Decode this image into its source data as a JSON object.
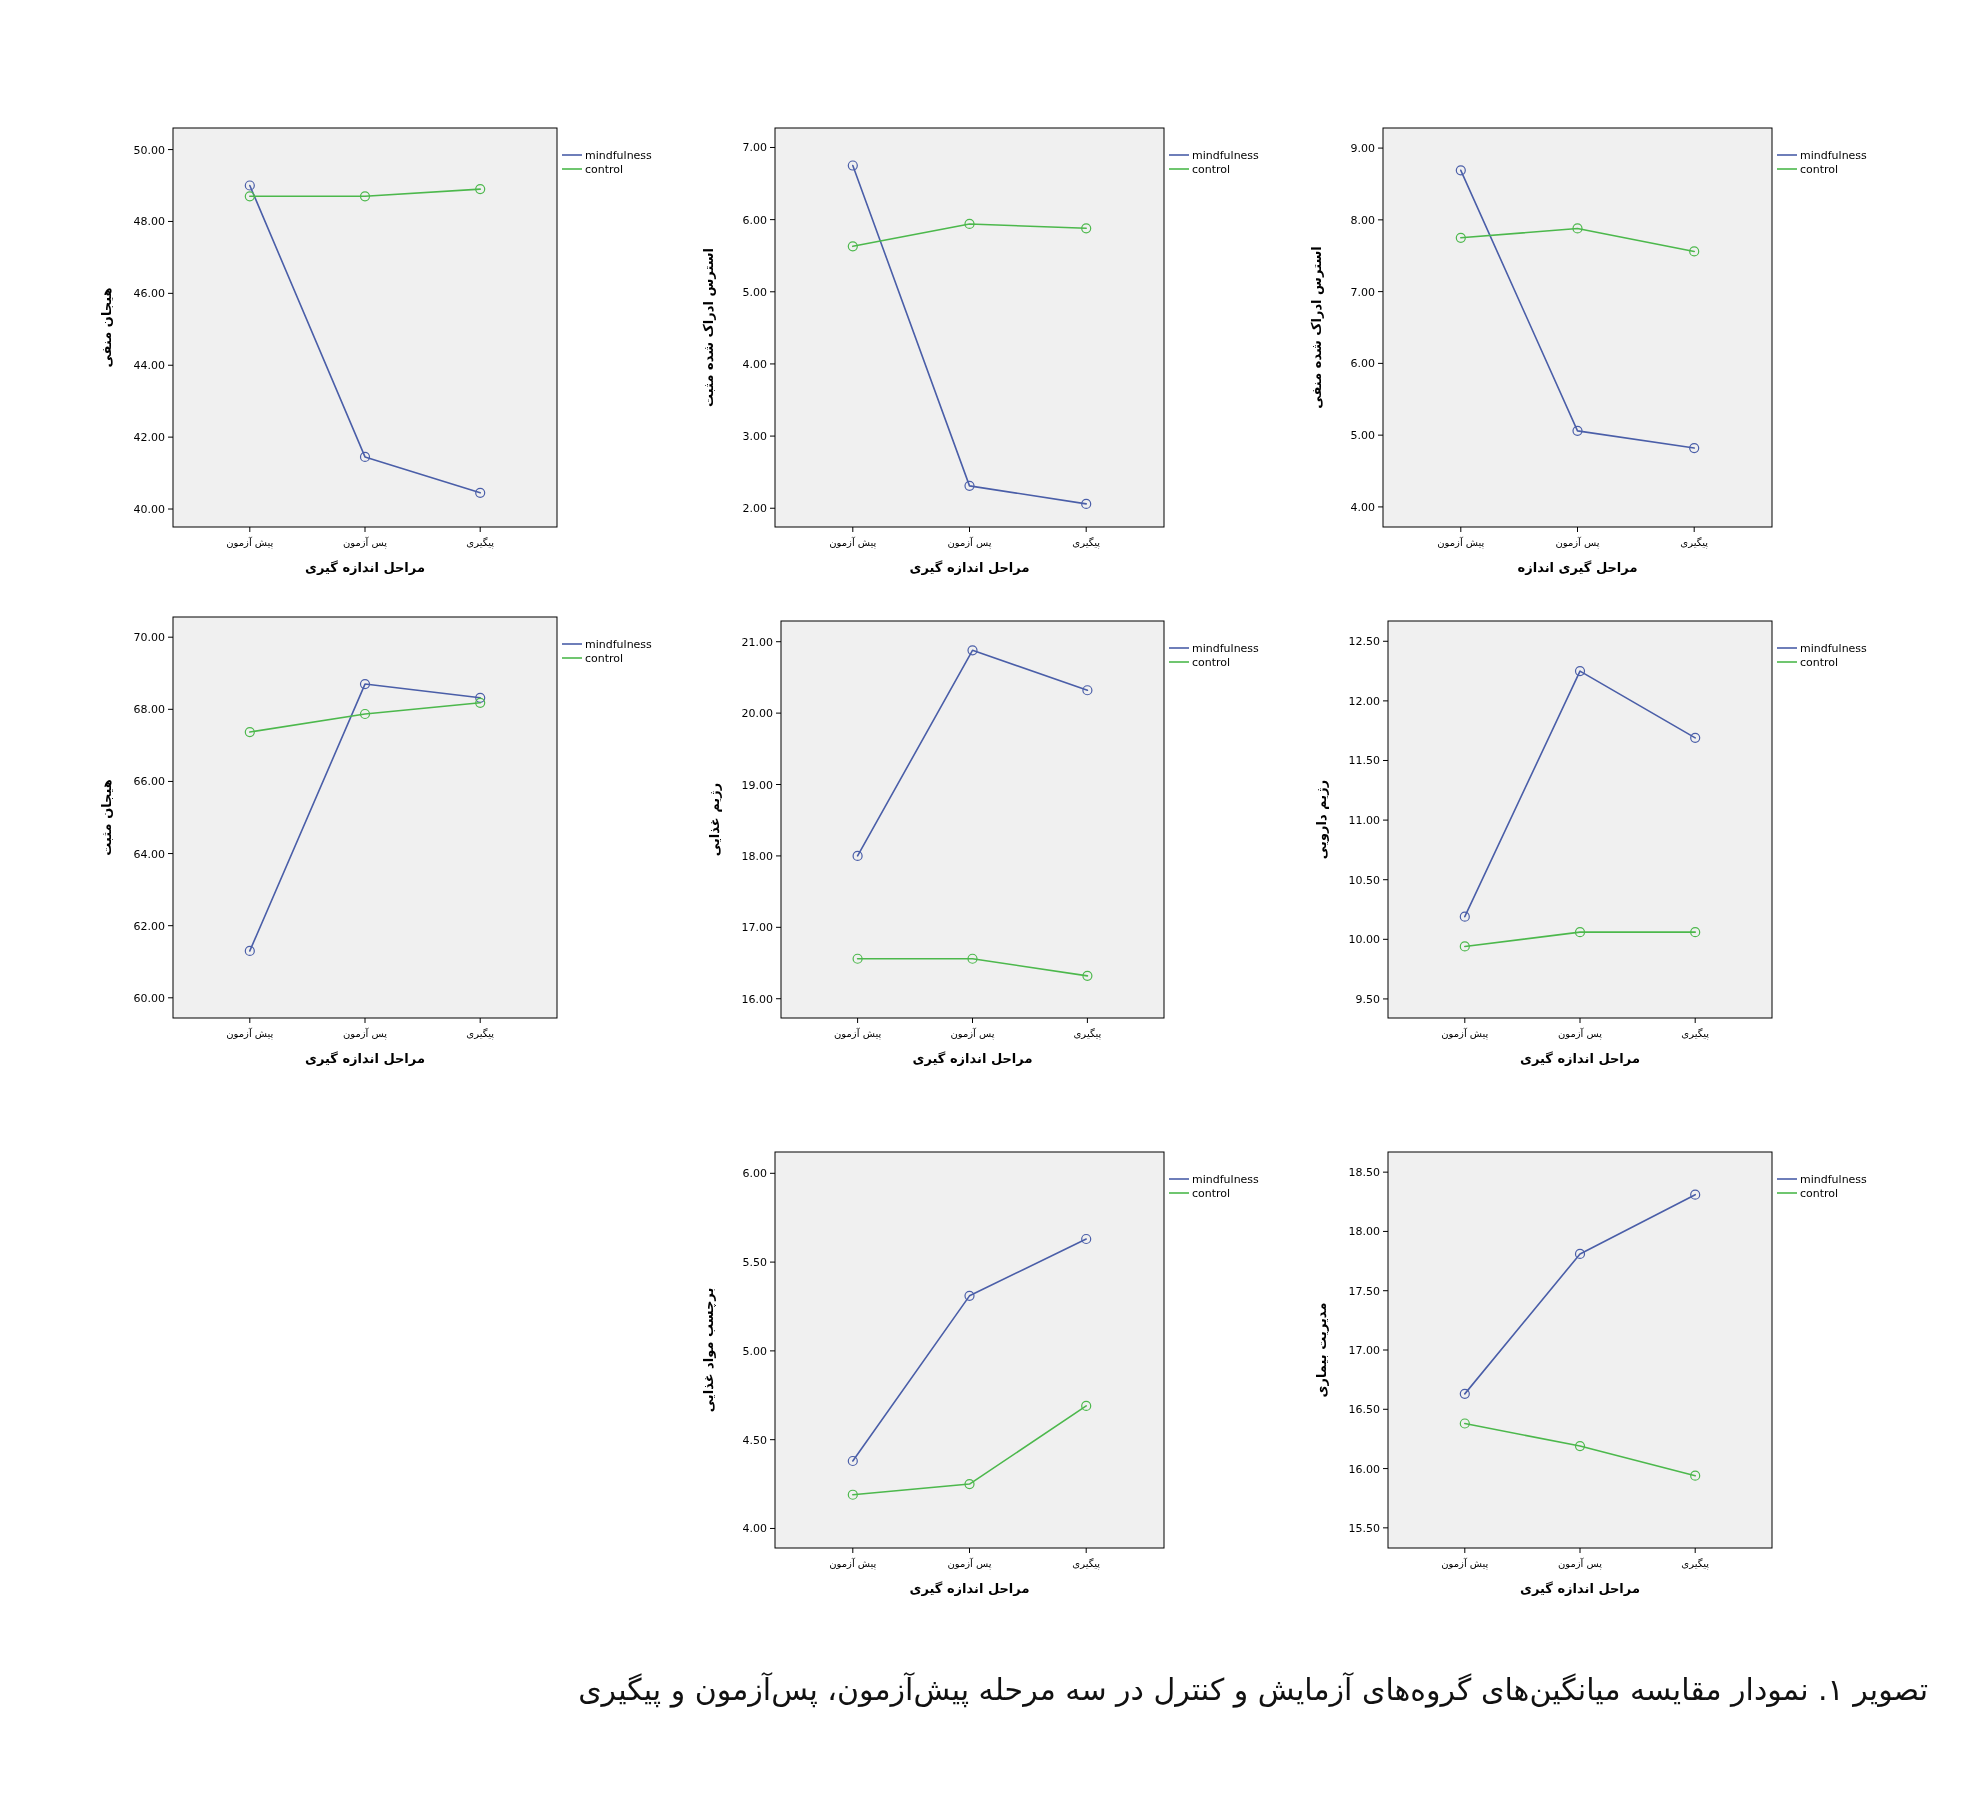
{
  "chart_data": [
    {
      "type": "line",
      "ylabel": "هیجان منفی",
      "xlabel": "مراحل اندازه گیری",
      "categories": [
        "پیش آزمون",
        "پس آزمون",
        "پیگیری"
      ],
      "ylim": [
        39.5,
        50.6
      ],
      "yticks": [
        {
          "value": 40,
          "label": "40.00"
        },
        {
          "value": 42,
          "label": "42.00"
        },
        {
          "value": 44,
          "label": "44.00"
        },
        {
          "value": 46,
          "label": "46.00"
        },
        {
          "value": 48,
          "label": "48.00"
        },
        {
          "value": 50,
          "label": "50.00"
        }
      ],
      "legend": "right",
      "marker": "circle",
      "grid": false,
      "annotations": [
        "تصویر ۱. نمودار مقایسه میانگین‌های گروه‌های آزمایش و کنترل در سه مرحله پیش‌آزمون، پس‌آزمون و پیگیری"
      ],
      "series": [
        {
          "name": "mindfulness",
          "color": "#4a5ea8",
          "values": [
            49.0,
            41.45,
            40.45
          ]
        },
        {
          "name": "control",
          "color": "#4cb84c",
          "values": [
            48.7,
            48.7,
            48.9
          ]
        }
      ]
    },
    {
      "type": "line",
      "ylabel": "استرس ادراک شده مثبت",
      "xlabel": "مراحل اندازه گیری",
      "categories": [
        "پیش آزمون",
        "پس آزمون",
        "پیگیری"
      ],
      "ylim": [
        1.74,
        7.27
      ],
      "yticks": [
        {
          "value": 2,
          "label": "2.00"
        },
        {
          "value": 3,
          "label": "3.00"
        },
        {
          "value": 4,
          "label": "4.00"
        },
        {
          "value": 5,
          "label": "5.00"
        },
        {
          "value": 6,
          "label": "6.00"
        },
        {
          "value": 7,
          "label": "7.00"
        }
      ],
      "legend": "right",
      "marker": "circle",
      "grid": false,
      "series": [
        {
          "name": "mindfulness",
          "color": "#4a5ea8",
          "values": [
            6.75,
            2.31,
            2.06
          ]
        },
        {
          "name": "control",
          "color": "#4cb84c",
          "values": [
            5.63,
            5.94,
            5.88
          ]
        }
      ]
    },
    {
      "type": "line",
      "ylabel": "استرس ادراک شده منفی",
      "xlabel": "مراحل گیری اندازه",
      "categories": [
        "پیش آزمون",
        "پس آزمون",
        "پیگیری"
      ],
      "ylim": [
        3.72,
        9.28
      ],
      "yticks": [
        {
          "value": 4,
          "label": "4.00"
        },
        {
          "value": 5,
          "label": "5.00"
        },
        {
          "value": 6,
          "label": "6.00"
        },
        {
          "value": 7,
          "label": "7.00"
        },
        {
          "value": 8,
          "label": "8.00"
        },
        {
          "value": 9,
          "label": "9.00"
        }
      ],
      "legend": "right",
      "marker": "circle",
      "grid": false,
      "series": [
        {
          "name": "mindfulness",
          "color": "#4a5ea8",
          "values": [
            8.69,
            5.06,
            4.82
          ]
        },
        {
          "name": "control",
          "color": "#4cb84c",
          "values": [
            7.75,
            7.88,
            7.56
          ]
        }
      ]
    },
    {
      "type": "line",
      "ylabel": "هیجان مثبت",
      "xlabel": "مراحل اندازه گیری",
      "categories": [
        "پیش آزمون",
        "پس آزمون",
        "پیگیری"
      ],
      "ylim": [
        59.44,
        70.56
      ],
      "yticks": [
        {
          "value": 60,
          "label": "60.00"
        },
        {
          "value": 62,
          "label": "62.00"
        },
        {
          "value": 64,
          "label": "64.00"
        },
        {
          "value": 66,
          "label": "66.00"
        },
        {
          "value": 68,
          "label": "68.00"
        },
        {
          "value": 70,
          "label": "70.00"
        }
      ],
      "legend": "right",
      "marker": "circle",
      "grid": false,
      "series": [
        {
          "name": "mindfulness",
          "color": "#4a5ea8",
          "values": [
            61.3,
            68.7,
            68.32
          ]
        },
        {
          "name": "control",
          "color": "#4cb84c",
          "values": [
            67.37,
            67.87,
            68.18
          ]
        }
      ]
    },
    {
      "type": "line",
      "ylabel": "رژیم غذایی",
      "xlabel": "مراحل اندازه گیری",
      "categories": [
        "پیش آزمون",
        "پس آزمون",
        "پیگیری"
      ],
      "ylim": [
        15.73,
        21.29
      ],
      "yticks": [
        {
          "value": 16,
          "label": "16.00"
        },
        {
          "value": 17,
          "label": "17.00"
        },
        {
          "value": 18,
          "label": "18.00"
        },
        {
          "value": 19,
          "label": "19.00"
        },
        {
          "value": 20,
          "label": "20.00"
        },
        {
          "value": 21,
          "label": "21.00"
        }
      ],
      "legend": "right",
      "marker": "circle",
      "grid": false,
      "series": [
        {
          "name": "mindfulness",
          "color": "#4a5ea8",
          "values": [
            18.0,
            20.88,
            20.32
          ]
        },
        {
          "name": "control",
          "color": "#4cb84c",
          "values": [
            16.56,
            16.56,
            16.32
          ]
        }
      ]
    },
    {
      "type": "line",
      "ylabel": "رژیم دارویی",
      "xlabel": "مراحل اندازه گیری",
      "categories": [
        "پیش آزمون",
        "پس آزمون",
        "پیگیری"
      ],
      "ylim": [
        9.34,
        12.67
      ],
      "yticks": [
        {
          "value": 9.5,
          "label": "9.50"
        },
        {
          "value": 10,
          "label": "10.00"
        },
        {
          "value": 10.5,
          "label": "10.50"
        },
        {
          "value": 11,
          "label": "11.00"
        },
        {
          "value": 11.5,
          "label": "11.50"
        },
        {
          "value": 12,
          "label": "12.00"
        },
        {
          "value": 12.5,
          "label": "12.50"
        }
      ],
      "legend": "right",
      "marker": "circle",
      "grid": false,
      "series": [
        {
          "name": "mindfulness",
          "color": "#4a5ea8",
          "values": [
            10.19,
            12.25,
            11.69
          ]
        },
        {
          "name": "control",
          "color": "#4cb84c",
          "values": [
            9.94,
            10.06,
            10.06
          ]
        }
      ]
    },
    {
      "type": "line",
      "ylabel": "برچسب مواد غذایی",
      "xlabel": "مراحل اندازه گیری",
      "categories": [
        "پیش آزمون",
        "پس آزمون",
        "پیگیری"
      ],
      "ylim": [
        3.89,
        6.12
      ],
      "yticks": [
        {
          "value": 4,
          "label": "4.00"
        },
        {
          "value": 4.5,
          "label": "4.50"
        },
        {
          "value": 5,
          "label": "5.00"
        },
        {
          "value": 5.5,
          "label": "5.50"
        },
        {
          "value": 6,
          "label": "6.00"
        }
      ],
      "legend": "right",
      "marker": "circle",
      "grid": false,
      "series": [
        {
          "name": "mindfulness",
          "color": "#4a5ea8",
          "values": [
            4.38,
            5.31,
            5.63
          ]
        },
        {
          "name": "control",
          "color": "#4cb84c",
          "values": [
            4.19,
            4.25,
            4.69
          ]
        }
      ]
    },
    {
      "type": "line",
      "ylabel": "مدیریت بیماری",
      "xlabel": "مراحل اندازه گیری",
      "categories": [
        "پیش آزمون",
        "پس آزمون",
        "پیگیری"
      ],
      "ylim": [
        15.33,
        18.67
      ],
      "yticks": [
        {
          "value": 15.5,
          "label": "15.50"
        },
        {
          "value": 16,
          "label": "16.00"
        },
        {
          "value": 16.5,
          "label": "16.50"
        },
        {
          "value": 17,
          "label": "17.00"
        },
        {
          "value": 17.5,
          "label": "17.50"
        },
        {
          "value": 18,
          "label": "18.00"
        },
        {
          "value": 18.5,
          "label": "18.50"
        }
      ],
      "legend": "right",
      "marker": "circle",
      "grid": false,
      "series": [
        {
          "name": "mindfulness",
          "color": "#4a5ea8",
          "values": [
            16.63,
            17.81,
            18.31
          ]
        },
        {
          "name": "control",
          "color": "#4cb84c",
          "values": [
            16.38,
            16.19,
            15.94
          ]
        }
      ]
    }
  ]
}
